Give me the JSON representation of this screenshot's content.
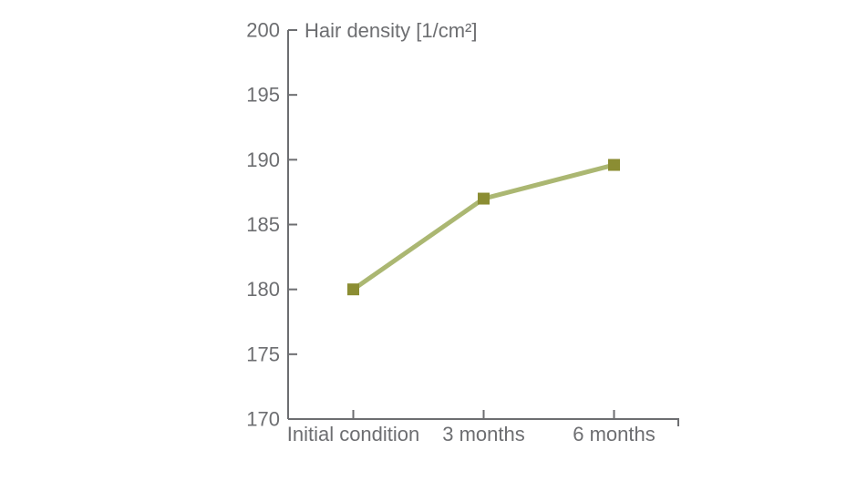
{
  "chart_data": {
    "type": "line",
    "title": "Hair density [1/cm²]",
    "categories": [
      "Initial condition",
      "3 months",
      "6 months"
    ],
    "series": [
      {
        "name": "Hair density",
        "values": [
          180,
          187,
          189.6
        ]
      }
    ],
    "ylim": [
      170,
      200
    ],
    "yticks": [
      170,
      175,
      180,
      185,
      190,
      195,
      200
    ],
    "grid": false,
    "legend": "none",
    "marker": "square",
    "colors": {
      "line": "#abb772",
      "marker": "#8b8d33",
      "axis": "#6d6e71",
      "text": "#6d6e71",
      "background": "#ffffff"
    }
  }
}
